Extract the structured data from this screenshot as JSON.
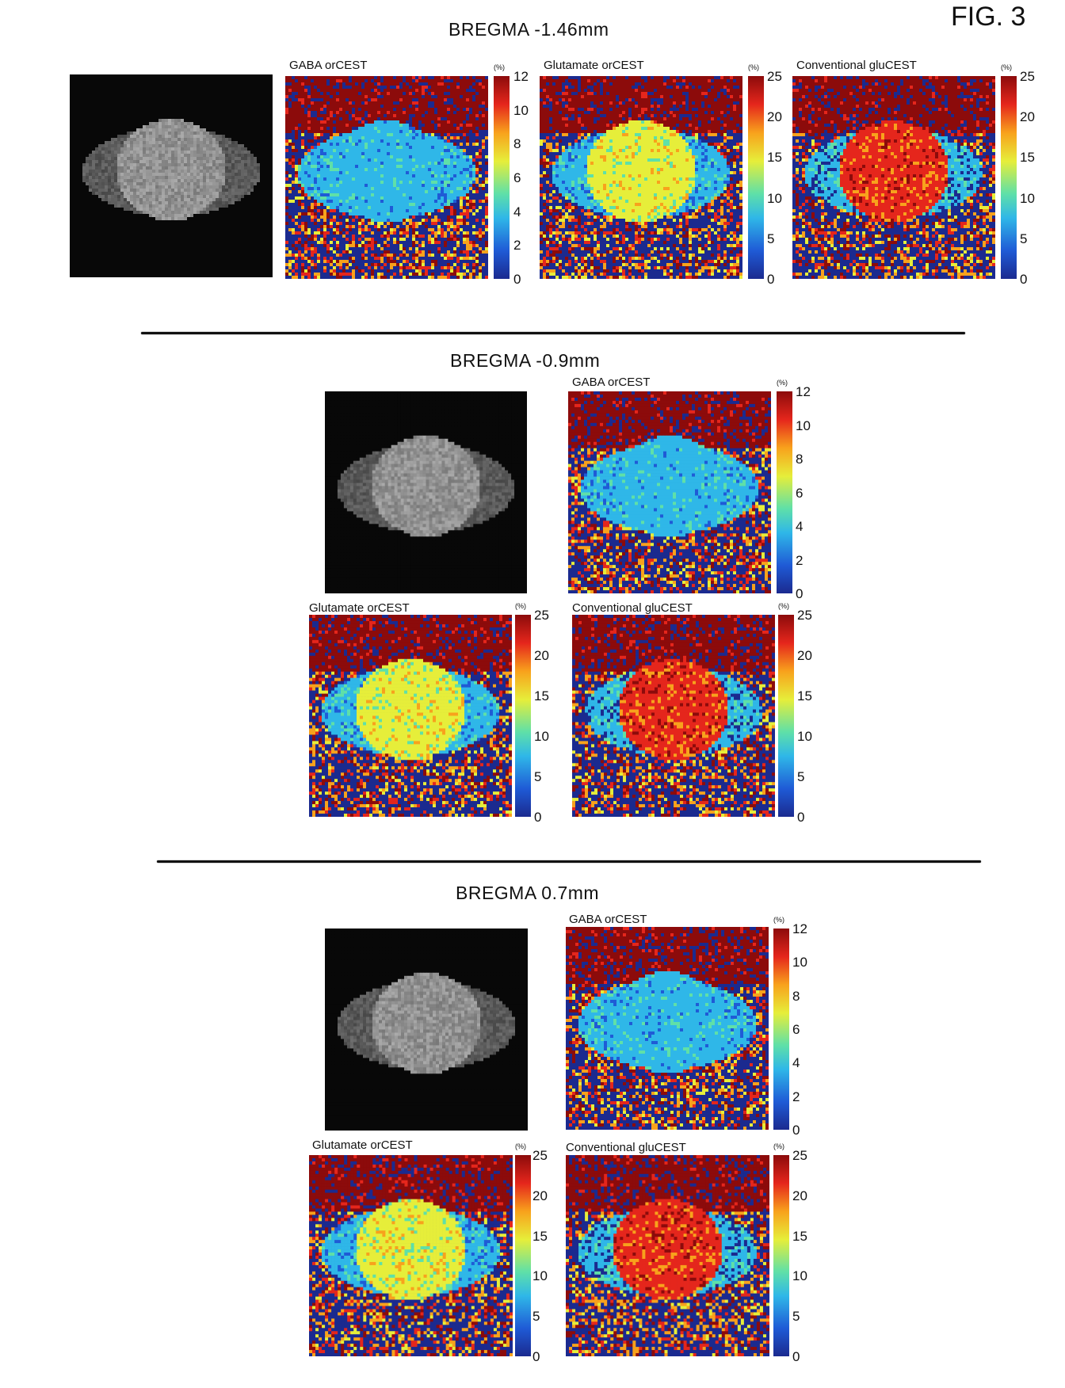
{
  "figure_label": "FIG. 3",
  "colormap": [
    "#1b2a8f",
    "#1f5bd6",
    "#2fb7e8",
    "#5fe0a8",
    "#e6ee3a",
    "#f8a21c",
    "#e5261c",
    "#8c0b0b"
  ],
  "unit_label": "(%)",
  "sections": [
    {
      "title": "BREGMA -1.46mm",
      "panels": [
        {
          "title": "GABA orCEST",
          "ticks": [
            "12",
            "10",
            "8",
            "6",
            "4",
            "2",
            "0"
          ]
        },
        {
          "title": "Glutamate orCEST",
          "ticks": [
            "25",
            "20",
            "15",
            "10",
            "5",
            "0"
          ]
        },
        {
          "title": "Conventional gluCEST",
          "ticks": [
            "25",
            "20",
            "15",
            "10",
            "5",
            "0"
          ]
        }
      ]
    },
    {
      "title": "BREGMA -0.9mm",
      "panels": [
        {
          "title": "GABA orCEST",
          "ticks": [
            "12",
            "10",
            "8",
            "6",
            "4",
            "2",
            "0"
          ]
        },
        {
          "title": "Glutamate orCEST",
          "ticks": [
            "25",
            "20",
            "15",
            "10",
            "5",
            "0"
          ]
        },
        {
          "title": "Conventional gluCEST",
          "ticks": [
            "25",
            "20",
            "15",
            "10",
            "5",
            "0"
          ]
        }
      ]
    },
    {
      "title": "BREGMA 0.7mm",
      "panels": [
        {
          "title": "GABA orCEST",
          "ticks": [
            "12",
            "10",
            "8",
            "6",
            "4",
            "2",
            "0"
          ]
        },
        {
          "title": "Glutamate orCEST",
          "ticks": [
            "25",
            "20",
            "15",
            "10",
            "5",
            "0"
          ]
        },
        {
          "title": "Conventional gluCEST",
          "ticks": [
            "25",
            "20",
            "15",
            "10",
            "5",
            "0"
          ]
        }
      ]
    }
  ]
}
